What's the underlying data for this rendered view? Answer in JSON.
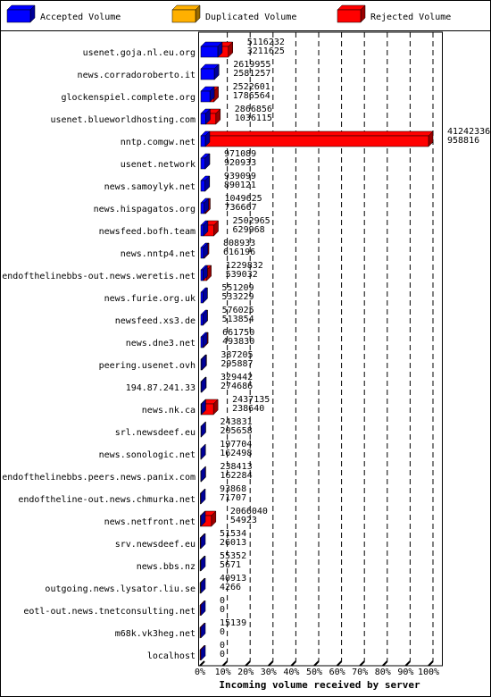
{
  "chart_data": {
    "type": "stacked-bar-3d",
    "orientation": "horizontal",
    "xlabel": "Incoming volume received by server",
    "categories": [
      "usenet.goja.nl.eu.org",
      "news.corradoroberto.it",
      "glockenspiel.complete.org",
      "usenet.blueworldhosting.com",
      "nntp.comgw.net",
      "usenet.network",
      "news.samoylyk.net",
      "news.hispagatos.org",
      "newsfeed.bofh.team",
      "news.nntp4.net",
      "endofthelinebbs-out.news.weretis.net",
      "news.furie.org.uk",
      "newsfeed.xs3.de",
      "news.dne3.net",
      "peering.usenet.ovh",
      "194.87.241.33",
      "news.nk.ca",
      "srl.newsdeef.eu",
      "news.sonologic.net",
      "endofthelinebbs.peers.news.panix.com",
      "endoftheline-out.news.chmurka.net",
      "news.netfront.net",
      "srv.newsdeef.eu",
      "news.bbs.nz",
      "outgoing.news.lysator.liu.se",
      "eotl-out.news.tnetconsulting.net",
      "m68k.vk3heg.net",
      "localhost"
    ],
    "totals": [
      5116232,
      2619955,
      2522601,
      2866856,
      41242336,
      971089,
      939099,
      1049625,
      2502965,
      808933,
      1229832,
      551209,
      576025,
      661750,
      387205,
      329442,
      2437135,
      243831,
      197704,
      238413,
      93868,
      2066040,
      51534,
      55352,
      40913,
      0,
      15139,
      0
    ],
    "series": [
      {
        "name": "Accepted Volume",
        "color": "#0000ff",
        "values": [
          3211625,
          2581257,
          1786564,
          1036115,
          958816,
          920933,
          890121,
          736667,
          629968,
          616196,
          539032,
          533229,
          513854,
          493830,
          295887,
          274686,
          238640,
          205658,
          162498,
          162284,
          71707,
          54923,
          26013,
          5671,
          4266,
          0,
          0,
          0
        ]
      },
      {
        "name": "Duplicated Volume",
        "color": "#ffb000"
      },
      {
        "name": "Rejected Volume",
        "color": "#ff0000"
      }
    ],
    "rest_series": [
      2,
      2,
      2,
      2,
      2,
      2,
      2,
      2,
      2,
      2,
      2,
      2,
      2,
      2,
      2,
      2,
      2,
      2,
      2,
      2,
      2,
      2,
      2,
      1,
      1,
      2,
      2,
      2
    ],
    "xlim": [
      0,
      100
    ],
    "xticks": [
      {
        "value": 0,
        "label": "0%"
      },
      {
        "value": 10,
        "label": "10%"
      },
      {
        "value": 20,
        "label": "20%"
      },
      {
        "value": 30,
        "label": "30%"
      },
      {
        "value": 40,
        "label": "40%"
      },
      {
        "value": 50,
        "label": "50%"
      },
      {
        "value": 60,
        "label": "60%"
      },
      {
        "value": 70,
        "label": "70%"
      },
      {
        "value": 80,
        "label": "80%"
      },
      {
        "value": 90,
        "label": "90%"
      },
      {
        "value": 100,
        "label": "100%"
      }
    ],
    "grid": true
  }
}
